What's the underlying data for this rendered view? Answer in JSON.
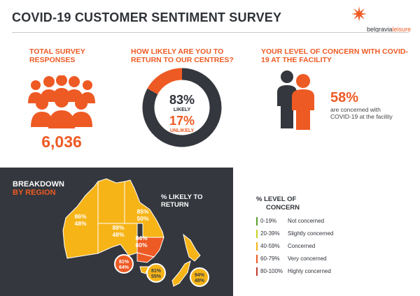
{
  "header": {
    "title": "COVID-19 CUSTOMER SENTIMENT SURVEY",
    "logo_text_main": "belgravia",
    "logo_text_accent": "leisure"
  },
  "total": {
    "heading": "TOTAL SURVEY RESPONSES",
    "value": "6,036",
    "icon": "people-group-icon"
  },
  "likely": {
    "heading": "HOW LIKELY ARE YOU TO RETURN TO OUR CENTRES?",
    "likely_pct": "83%",
    "likely_label": "LIKELY",
    "unlikely_pct": "17%",
    "unlikely_label": "UNLIKELY"
  },
  "concern": {
    "heading": "YOUR LEVEL OF CONCERN WITH COVID-19 AT THE FACILITY",
    "pct": "58%",
    "text": "are concerned with COVID-19 at the facility",
    "icon": "two-people-icon"
  },
  "breakdown": {
    "heading_1": "BREAKDOWN",
    "heading_2": "BY REGION",
    "likely_heading": "% LIKELY TO RETURN"
  },
  "regions": [
    {
      "likely": "86%",
      "concern": "48%"
    },
    {
      "likely": "85%",
      "concern": "50%"
    },
    {
      "likely": "88%",
      "concern": "48%"
    },
    {
      "likely": "84%",
      "concern": "60%"
    },
    {
      "likely": "81%",
      "concern": "64%"
    },
    {
      "likely": "81%",
      "concern": "55%"
    },
    {
      "likely": "94%",
      "concern": "48%"
    }
  ],
  "legend": {
    "heading_1": "% LEVEL OF",
    "heading_2": "CONCERN",
    "items": [
      {
        "range": "0-19%",
        "label": "Not concerned",
        "color": "#5aa02c"
      },
      {
        "range": "20-39%",
        "label": "Slightly concerned",
        "color": "#c9d226"
      },
      {
        "range": "40-59%",
        "label": "Concerned",
        "color": "#f6b417"
      },
      {
        "range": "60-79%",
        "label": "Very concerned",
        "color": "#ee5a24"
      },
      {
        "range": "80-100%",
        "label": "Highly concerned",
        "color": "#c0392b"
      }
    ]
  },
  "colors": {
    "accent": "#ee5a24",
    "dark": "#34373d",
    "concerned": "#f6b417",
    "very_concerned": "#ee5a24"
  },
  "chart_data": [
    {
      "type": "pie",
      "title": "HOW LIKELY ARE YOU TO RETURN TO OUR CENTRES?",
      "categories": [
        "LIKELY",
        "UNLIKELY"
      ],
      "values": [
        83,
        17
      ]
    }
  ]
}
